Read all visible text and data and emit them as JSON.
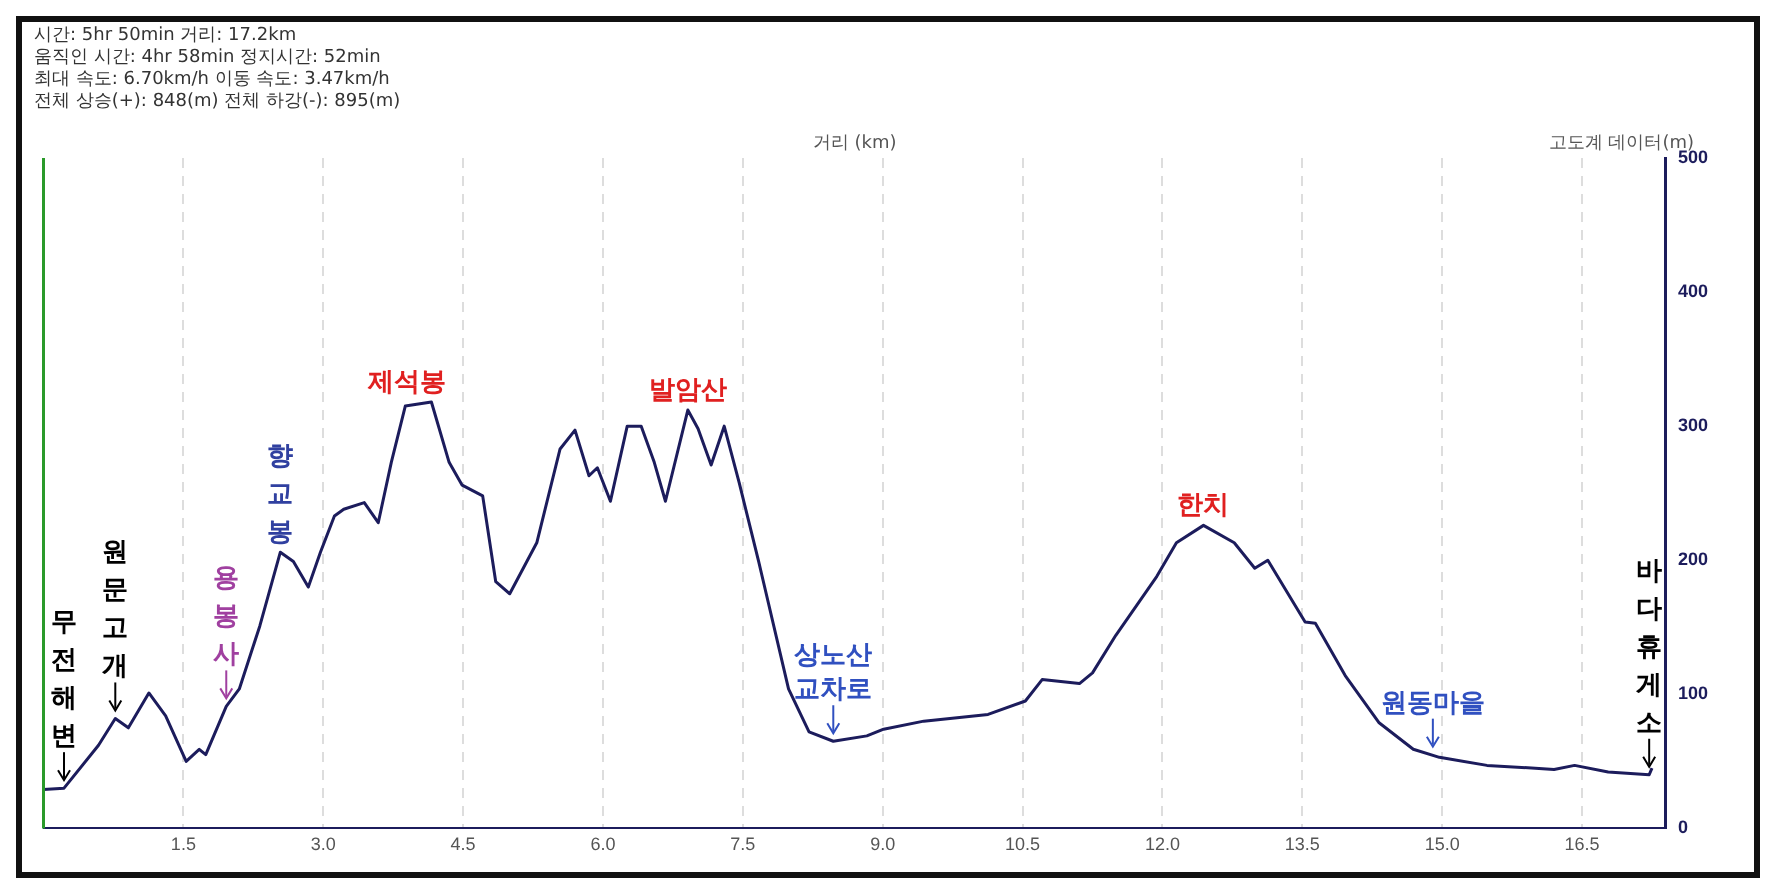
{
  "chart_data": {
    "type": "line",
    "xlabel": "거리 (km)",
    "ylabel": "고도계 데이터(m)",
    "annotations": [
      "시간: 5hr 50min  거리: 17.2km",
      "움직인 시간: 4hr 58min  정지시간: 52min",
      "최대 속도: 6.70km/h  이동 속도: 3.47km/h",
      "전체 상승(+): 848(m)  전체 하강(-): 895(m)",
      {
        "text": "무전해변",
        "x": 0.22,
        "y": 30
      },
      {
        "text": "원문고개",
        "x": 0.77,
        "y": 82
      },
      {
        "text": "용봉사",
        "x": 1.96,
        "y": 91
      },
      {
        "text": "향교봉",
        "x": 2.54,
        "y": 206
      },
      {
        "text": "제석봉",
        "x": 3.9,
        "y": 318
      },
      {
        "text": "발암산",
        "x": 6.91,
        "y": 312
      },
      {
        "text": "상노산 교차로",
        "x": 8.47,
        "y": 65
      },
      {
        "text": "한치",
        "x": 12.44,
        "y": 226
      },
      {
        "text": "원동마을",
        "x": 14.9,
        "y": 55
      },
      {
        "text": "바다휴게소",
        "x": 17.22,
        "y": 40
      }
    ],
    "x": [
      0,
      0.22,
      0.59,
      0.77,
      0.91,
      1.13,
      1.31,
      1.53,
      1.67,
      1.74,
      1.96,
      2.1,
      2.32,
      2.54,
      2.68,
      2.84,
      2.97,
      3.12,
      3.22,
      3.44,
      3.59,
      3.73,
      3.88,
      4.16,
      4.35,
      4.49,
      4.71,
      4.85,
      5.0,
      5.29,
      5.54,
      5.7,
      5.85,
      5.94,
      6.08,
      6.26,
      6.41,
      6.55,
      6.67,
      6.91,
      7.02,
      7.16,
      7.3,
      7.46,
      7.67,
      7.99,
      8.21,
      8.47,
      8.83,
      9.01,
      9.44,
      10.13,
      10.53,
      10.71,
      11.11,
      11.25,
      11.5,
      11.94,
      12.15,
      12.44,
      12.77,
      12.99,
      13.13,
      13.53,
      13.64,
      13.96,
      14.32,
      14.69,
      14.97,
      15.48,
      16.2,
      16.42,
      16.78,
      17.22,
      17.25
    ],
    "series": [
      {
        "color": "#1c1c5c",
        "values": [
          29,
          30,
          62,
          82,
          75,
          101,
          84,
          50,
          59,
          55,
          91,
          104,
          151,
          206,
          199,
          180,
          206,
          233,
          238,
          243,
          228,
          273,
          315,
          318,
          273,
          256,
          248,
          184,
          175,
          213,
          283,
          297,
          263,
          269,
          244,
          300,
          300,
          273,
          244,
          312,
          298,
          271,
          300,
          258,
          199,
          104,
          72,
          65,
          69,
          74,
          80,
          85,
          95,
          111,
          108,
          116,
          144,
          188,
          213,
          226,
          213,
          194,
          200,
          154,
          153,
          114,
          79,
          59,
          53,
          47,
          44,
          47,
          42,
          40,
          45
        ]
      }
    ],
    "xlim": [
      0,
      17.4
    ],
    "xticks": [
      {
        "value": 1.5,
        "label": "1.5"
      },
      {
        "value": 3,
        "label": "3.0"
      },
      {
        "value": 4.5,
        "label": "4.5"
      },
      {
        "value": 6,
        "label": "6.0"
      },
      {
        "value": 7.5,
        "label": "7.5"
      },
      {
        "value": 9,
        "label": "9.0"
      },
      {
        "value": 10.5,
        "label": "10.5"
      },
      {
        "value": 12,
        "label": "12.0"
      },
      {
        "value": 13.5,
        "label": "13.5"
      },
      {
        "value": 15,
        "label": "15.0"
      },
      {
        "value": 16.5,
        "label": "16.5"
      }
    ],
    "ylim": [
      0,
      500
    ],
    "yticks": [
      0,
      100,
      200,
      300,
      400,
      500
    ],
    "grid": "x",
    "legend": false,
    "marker": "none",
    "line_style": "solid"
  }
}
